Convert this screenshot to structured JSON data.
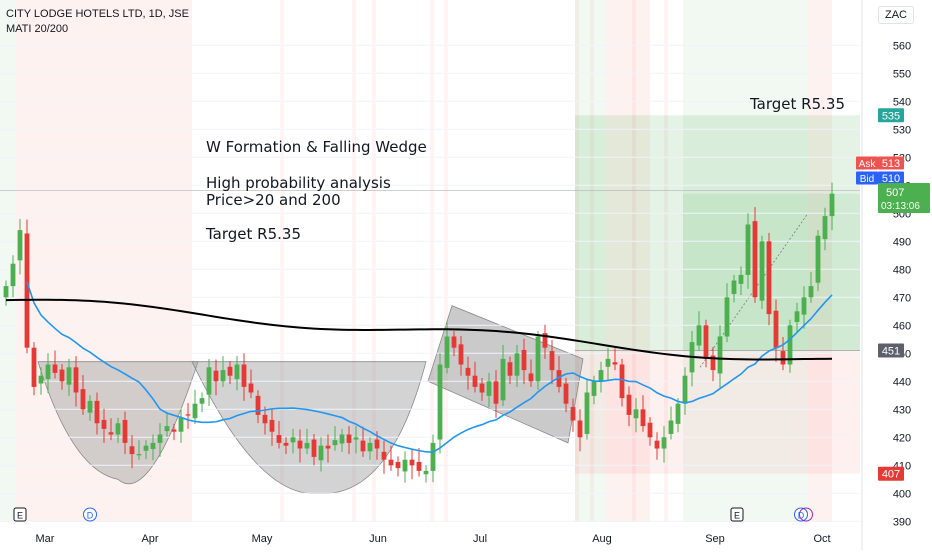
{
  "header": {
    "symbol_line": "CITY LODGE HOTELS LTD, 1D, JSE",
    "indicator_line": "MATI 20/200",
    "currency": "ZAC"
  },
  "annotations": {
    "title": "W Formation & Falling Wedge",
    "line1": "High probability analysis",
    "line2": "Price>20 and 200",
    "line3": "Target R5.35",
    "target_top": "Target R5.35"
  },
  "badges": {
    "target": "535",
    "ask_label": "Ask",
    "ask": "513",
    "bid_label": "Bid",
    "bid": "510",
    "price": "507",
    "countdown": "03:13:06",
    "entry": "451",
    "stop": "407"
  },
  "events": [
    "E",
    "D",
    "E",
    "D"
  ],
  "colors": {
    "up": "#4caf50",
    "down": "#e53935",
    "ma20": "#2196f3",
    "ma200": "#000000",
    "zone_green": "#4caf50",
    "zone_red": "#f44336",
    "pattern": "#9e9e9e"
  },
  "chart_data": {
    "type": "candlestick",
    "ylim": [
      385,
      570
    ],
    "y_ticks": [
      390,
      400,
      410,
      420,
      430,
      440,
      450,
      460,
      470,
      480,
      490,
      500,
      510,
      520,
      530,
      540,
      550,
      560
    ],
    "month_labels": [
      "Mar",
      "Apr",
      "May",
      "Jun",
      "Jul",
      "Aug",
      "Sep",
      "Oct"
    ],
    "price_levels": {
      "target": 535,
      "entry": 451,
      "stop": 407,
      "last": 507
    },
    "candles_close": [
      474,
      482,
      494,
      452,
      438,
      442,
      446,
      443,
      440,
      445,
      436,
      430,
      433,
      425,
      423,
      421,
      425,
      418,
      414,
      414,
      417,
      418,
      421,
      424,
      422,
      427,
      428,
      432,
      434,
      445,
      440,
      444,
      442,
      446,
      438,
      436,
      428,
      425,
      422,
      418,
      417,
      420,
      416,
      418,
      413,
      417,
      416,
      419,
      421,
      418,
      420,
      415,
      418,
      416,
      412,
      410,
      409,
      412,
      410,
      408,
      408,
      418,
      446,
      456,
      452,
      446,
      442,
      438,
      436,
      440,
      432,
      448,
      442,
      450,
      444,
      440,
      456,
      452,
      444,
      438,
      432,
      426,
      420,
      436,
      440,
      444,
      448,
      446,
      434,
      428,
      430,
      424,
      420,
      416,
      420,
      426,
      432,
      442,
      454,
      460,
      448,
      444,
      456,
      470,
      476,
      478,
      496,
      470,
      490,
      464,
      452,
      446,
      460,
      465,
      470,
      474,
      492,
      499,
      507
    ]
  }
}
